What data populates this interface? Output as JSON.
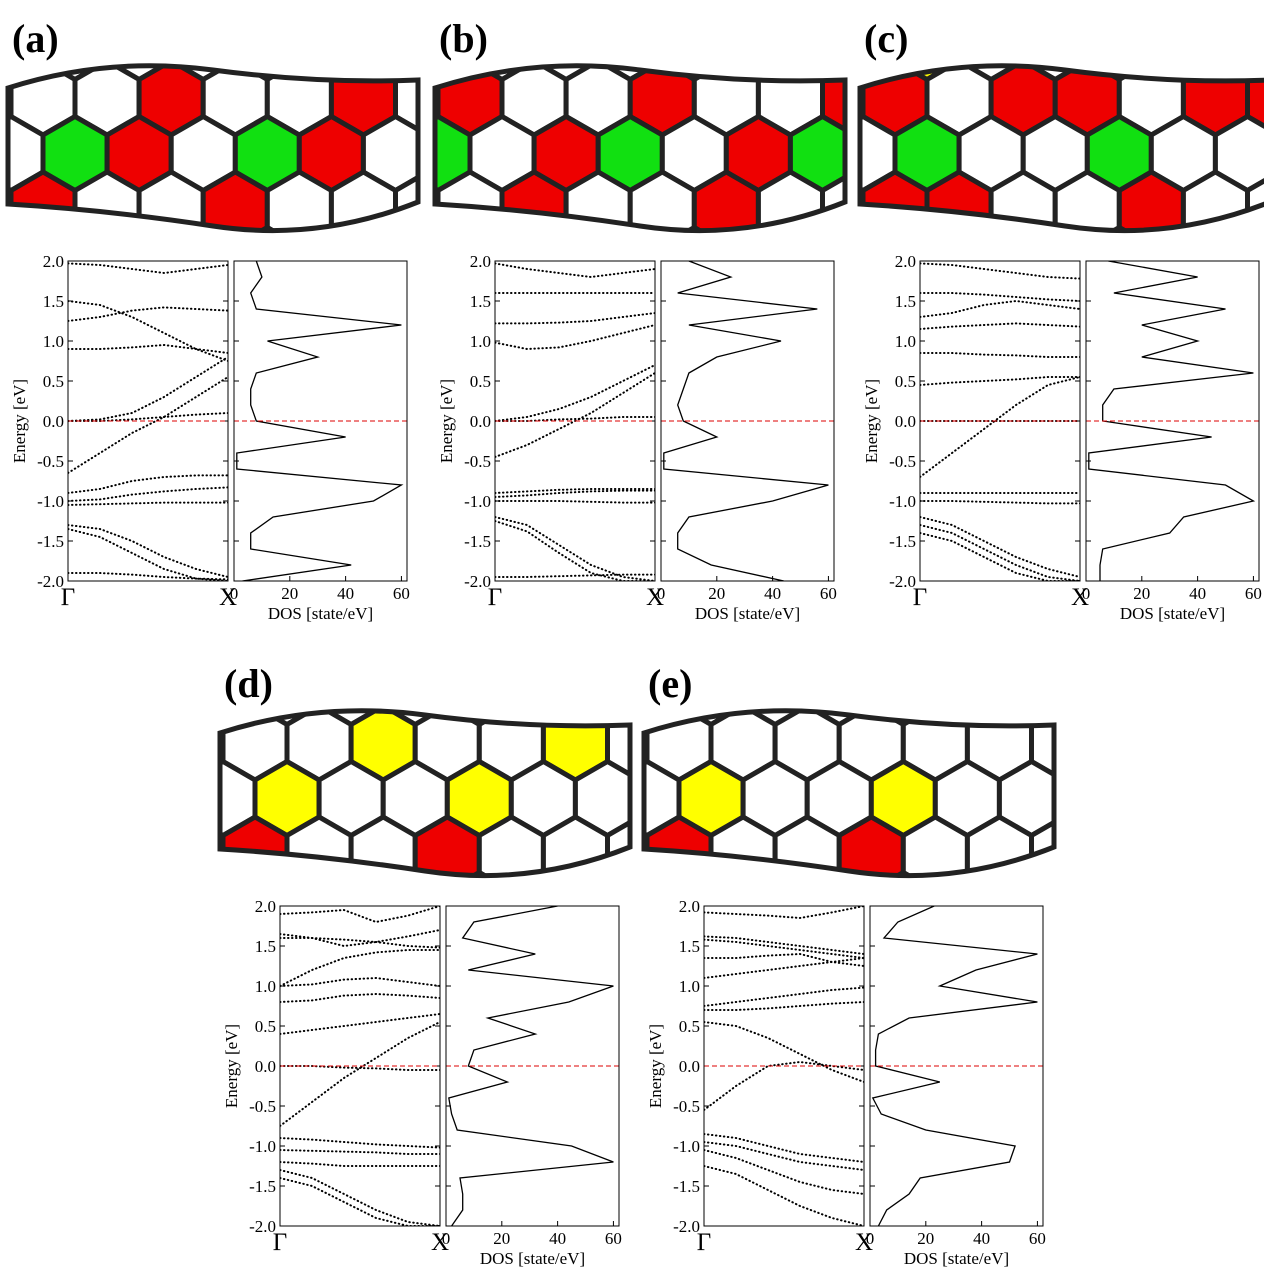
{
  "chart_data": [
    {
      "type": "band-dos",
      "label": "(a)",
      "ylabel": "Energy [eV]",
      "ylim": [
        -2,
        2
      ],
      "yticks": [
        {
          "value": -2,
          "label": "-2.0"
        },
        -1.5,
        {
          "value": -1,
          "label": "-1.0"
        },
        -0.5,
        {
          "value": 0,
          "label": "0.0"
        },
        0.5,
        {
          "value": 1,
          "label": "1.0"
        },
        1.5,
        {
          "value": 2,
          "label": "2.0"
        }
      ],
      "k_labels": [
        "Γ",
        "X"
      ],
      "xlim": [
        0,
        1
      ],
      "k": [
        0,
        0.2,
        0.4,
        0.6,
        0.8,
        1
      ],
      "bands": [
        [
          1.97,
          1.95,
          1.9,
          1.85,
          1.9,
          1.95
        ],
        [
          1.5,
          1.45,
          1.3,
          1.1,
          0.9,
          0.75
        ],
        [
          1.25,
          1.3,
          1.38,
          1.42,
          1.4,
          1.38
        ],
        [
          0.9,
          0.9,
          0.92,
          0.95,
          0.9,
          0.85
        ],
        [
          0.0,
          0.0,
          0.02,
          0.05,
          0.08,
          0.1
        ],
        [
          0.0,
          0.02,
          0.1,
          0.3,
          0.55,
          0.8
        ],
        [
          -0.65,
          -0.4,
          -0.15,
          0.05,
          0.3,
          0.55
        ],
        [
          -0.9,
          -0.85,
          -0.75,
          -0.7,
          -0.68,
          -0.68
        ],
        [
          -1.0,
          -0.98,
          -0.92,
          -0.88,
          -0.85,
          -0.83
        ],
        [
          -1.05,
          -1.04,
          -1.03,
          -1.02,
          -1.02,
          -1.02
        ],
        [
          -1.3,
          -1.35,
          -1.5,
          -1.7,
          -1.85,
          -1.95
        ],
        [
          -1.35,
          -1.45,
          -1.65,
          -1.85,
          -1.97,
          -2.0
        ],
        [
          -1.9,
          -1.9,
          -1.92,
          -1.95,
          -1.97,
          -1.98
        ]
      ],
      "fermi_level": 0,
      "dos_label": "DOS [state/eV]",
      "dos_xlim": [
        0,
        62
      ],
      "dos_xticks": [
        0,
        20,
        40,
        60
      ],
      "dos_energy": [
        -2,
        -1.8,
        -1.6,
        -1.4,
        -1.2,
        -1,
        -0.8,
        -0.6,
        -0.4,
        -0.2,
        0,
        0.2,
        0.4,
        0.6,
        0.8,
        1,
        1.2,
        1.4,
        1.6,
        1.8,
        2
      ],
      "dos": [
        3,
        42,
        6,
        6,
        14,
        50,
        60,
        1,
        1,
        40,
        8,
        6,
        6,
        8,
        30,
        12,
        60,
        8,
        6,
        10,
        8
      ]
    },
    {
      "type": "band-dos",
      "label": "(b)",
      "ylabel": "Energy [eV]",
      "ylim": [
        -2,
        2
      ],
      "yticks": [
        {
          "value": -2,
          "label": "-2.0"
        },
        -1.5,
        {
          "value": -1,
          "label": "-1.0"
        },
        -0.5,
        {
          "value": 0,
          "label": "0.0"
        },
        0.5,
        {
          "value": 1,
          "label": "1.0"
        },
        1.5,
        {
          "value": 2,
          "label": "2.0"
        }
      ],
      "k_labels": [
        "Γ",
        "X"
      ],
      "xlim": [
        0,
        1
      ],
      "k": [
        0,
        0.2,
        0.4,
        0.6,
        0.8,
        1
      ],
      "bands": [
        [
          1.97,
          1.9,
          1.85,
          1.8,
          1.85,
          1.9
        ],
        [
          1.6,
          1.6,
          1.6,
          1.6,
          1.6,
          1.6
        ],
        [
          1.22,
          1.22,
          1.23,
          1.25,
          1.3,
          1.35
        ],
        [
          0.98,
          0.9,
          0.92,
          1.0,
          1.1,
          1.2
        ],
        [
          0.0,
          0.05,
          0.15,
          0.3,
          0.5,
          0.7
        ],
        [
          -0.45,
          -0.3,
          -0.1,
          0.1,
          0.35,
          0.6
        ],
        [
          0.0,
          0.0,
          0.02,
          0.03,
          0.05,
          0.05
        ],
        [
          -0.9,
          -0.88,
          -0.86,
          -0.85,
          -0.85,
          -0.85
        ],
        [
          -0.95,
          -0.93,
          -0.9,
          -0.88,
          -0.87,
          -0.87
        ],
        [
          -1.0,
          -1.0,
          -1.0,
          -1.01,
          -1.02,
          -1.02
        ],
        [
          -1.2,
          -1.3,
          -1.55,
          -1.8,
          -1.95,
          -2.0
        ],
        [
          -1.25,
          -1.38,
          -1.65,
          -1.9,
          -2.0,
          -2.0
        ],
        [
          -1.95,
          -1.95,
          -1.94,
          -1.93,
          -1.92,
          -1.92
        ]
      ],
      "fermi_level": 0,
      "dos_label": "DOS [state/eV]",
      "dos_xlim": [
        0,
        62
      ],
      "dos_xticks": [
        0,
        20,
        40,
        60
      ],
      "dos_energy": [
        -2,
        -1.8,
        -1.6,
        -1.4,
        -1.2,
        -1,
        -0.8,
        -0.6,
        -0.4,
        -0.2,
        0,
        0.2,
        0.4,
        0.6,
        0.8,
        1,
        1.2,
        1.4,
        1.6,
        1.8,
        2
      ],
      "dos": [
        44,
        18,
        6,
        6,
        10,
        40,
        60,
        1,
        1,
        20,
        8,
        6,
        8,
        10,
        20,
        43,
        10,
        56,
        6,
        25,
        10
      ]
    },
    {
      "type": "band-dos",
      "label": "(c)",
      "ylabel": "Energy [eV]",
      "ylim": [
        -2,
        2
      ],
      "yticks": [
        {
          "value": -2,
          "label": "-2.0"
        },
        -1.5,
        {
          "value": -1,
          "label": "-1.0"
        },
        -0.5,
        {
          "value": 0,
          "label": "0.0"
        },
        0.5,
        {
          "value": 1,
          "label": "1.0"
        },
        1.5,
        {
          "value": 2,
          "label": "2.0"
        }
      ],
      "k_labels": [
        "Γ",
        "X"
      ],
      "xlim": [
        0,
        1
      ],
      "k": [
        0,
        0.2,
        0.4,
        0.6,
        0.8,
        1
      ],
      "bands": [
        [
          1.97,
          1.95,
          1.9,
          1.85,
          1.8,
          1.78
        ],
        [
          1.6,
          1.6,
          1.58,
          1.55,
          1.52,
          1.5
        ],
        [
          1.3,
          1.35,
          1.45,
          1.5,
          1.45,
          1.4
        ],
        [
          1.15,
          1.18,
          1.2,
          1.22,
          1.2,
          1.18
        ],
        [
          0.85,
          0.85,
          0.83,
          0.82,
          0.8,
          0.8
        ],
        [
          0.45,
          0.48,
          0.5,
          0.52,
          0.55,
          0.55
        ],
        [
          -0.7,
          -0.4,
          -0.1,
          0.2,
          0.45,
          0.55
        ],
        [
          0.0,
          0.0,
          0.0,
          0.0,
          0.0,
          0.0
        ],
        [
          -0.9,
          -0.9,
          -0.9,
          -0.9,
          -0.9,
          -0.9
        ],
        [
          -1.0,
          -1.0,
          -1.01,
          -1.02,
          -1.03,
          -1.03
        ],
        [
          -1.2,
          -1.3,
          -1.5,
          -1.7,
          -1.85,
          -1.95
        ],
        [
          -1.3,
          -1.4,
          -1.6,
          -1.8,
          -1.95,
          -2.0
        ],
        [
          -1.4,
          -1.5,
          -1.7,
          -1.9,
          -2.0,
          -2.0
        ]
      ],
      "fermi_level": 0,
      "dos_label": "DOS [state/eV]",
      "dos_xlim": [
        0,
        62
      ],
      "dos_xticks": [
        0,
        20,
        40,
        60
      ],
      "dos_energy": [
        -2,
        -1.8,
        -1.6,
        -1.4,
        -1.2,
        -1,
        -0.8,
        -0.6,
        -0.4,
        -0.2,
        0,
        0.2,
        0.4,
        0.6,
        0.8,
        1,
        1.2,
        1.4,
        1.6,
        1.8,
        2
      ],
      "dos": [
        5,
        5,
        6,
        30,
        35,
        60,
        50,
        1,
        1,
        45,
        6,
        6,
        10,
        60,
        20,
        40,
        20,
        50,
        10,
        40,
        8
      ]
    },
    {
      "type": "band-dos",
      "label": "(d)",
      "ylabel": "Energy [eV]",
      "ylim": [
        -2,
        2
      ],
      "yticks": [
        {
          "value": -2,
          "label": "-2.0"
        },
        -1.5,
        {
          "value": -1,
          "label": "-1.0"
        },
        -0.5,
        {
          "value": 0,
          "label": "0.0"
        },
        0.5,
        {
          "value": 1,
          "label": "1.0"
        },
        1.5,
        {
          "value": 2,
          "label": "2.0"
        }
      ],
      "k_labels": [
        "Γ",
        "X"
      ],
      "xlim": [
        0,
        1
      ],
      "k": [
        0,
        0.2,
        0.4,
        0.6,
        0.8,
        1
      ],
      "bands": [
        [
          1.9,
          1.92,
          1.95,
          1.8,
          1.88,
          2.0
        ],
        [
          1.65,
          1.6,
          1.5,
          1.55,
          1.62,
          1.7
        ],
        [
          1.6,
          1.6,
          1.58,
          1.55,
          1.5,
          1.48
        ],
        [
          1.0,
          1.2,
          1.35,
          1.42,
          1.45,
          1.45
        ],
        [
          1.0,
          1.02,
          1.08,
          1.1,
          1.05,
          1.0
        ],
        [
          0.8,
          0.82,
          0.88,
          0.9,
          0.88,
          0.85
        ],
        [
          0.4,
          0.45,
          0.5,
          0.55,
          0.6,
          0.65
        ],
        [
          -0.75,
          -0.45,
          -0.15,
          0.1,
          0.35,
          0.55
        ],
        [
          0.0,
          0.0,
          -0.02,
          -0.03,
          -0.05,
          -0.05
        ],
        [
          -0.9,
          -0.92,
          -0.95,
          -0.98,
          -1.0,
          -1.02
        ],
        [
          -1.05,
          -1.06,
          -1.07,
          -1.08,
          -1.1,
          -1.1
        ],
        [
          -1.2,
          -1.22,
          -1.25,
          -1.25,
          -1.25,
          -1.25
        ],
        [
          -1.3,
          -1.4,
          -1.6,
          -1.8,
          -1.95,
          -2.0
        ],
        [
          -1.4,
          -1.5,
          -1.7,
          -1.9,
          -2.0,
          -2.0
        ]
      ],
      "fermi_level": 0,
      "dos_label": "DOS [state/eV]",
      "dos_xlim": [
        0,
        62
      ],
      "dos_xticks": [
        0,
        20,
        40,
        60
      ],
      "dos_energy": [
        -2,
        -1.8,
        -1.6,
        -1.4,
        -1.2,
        -1,
        -0.8,
        -0.6,
        -0.4,
        -0.2,
        0,
        0.2,
        0.4,
        0.6,
        0.8,
        1,
        1.2,
        1.4,
        1.6,
        1.8,
        2
      ],
      "dos": [
        2,
        6,
        6,
        5,
        60,
        45,
        4,
        2,
        1,
        22,
        8,
        10,
        32,
        15,
        44,
        60,
        8,
        32,
        6,
        10,
        40
      ]
    },
    {
      "type": "band-dos",
      "label": "(e)",
      "ylabel": "Energy [eV]",
      "ylim": [
        -2,
        2
      ],
      "yticks": [
        {
          "value": -2,
          "label": "-2.0"
        },
        -1.5,
        {
          "value": -1,
          "label": "-1.0"
        },
        -0.5,
        {
          "value": 0,
          "label": "0.0"
        },
        0.5,
        {
          "value": 1,
          "label": "1.0"
        },
        1.5,
        {
          "value": 2,
          "label": "2.0"
        }
      ],
      "k_labels": [
        "Γ",
        "X"
      ],
      "xlim": [
        0,
        1
      ],
      "k": [
        0,
        0.2,
        0.4,
        0.6,
        0.8,
        1
      ],
      "bands": [
        [
          1.92,
          1.9,
          1.88,
          1.85,
          1.92,
          2.0
        ],
        [
          1.62,
          1.6,
          1.55,
          1.5,
          1.45,
          1.4
        ],
        [
          1.58,
          1.55,
          1.5,
          1.45,
          1.4,
          1.35
        ],
        [
          1.35,
          1.35,
          1.38,
          1.4,
          1.3,
          1.25
        ],
        [
          1.1,
          1.15,
          1.2,
          1.25,
          1.3,
          1.35
        ],
        [
          0.75,
          0.8,
          0.85,
          0.9,
          0.95,
          0.98
        ],
        [
          0.7,
          0.7,
          0.72,
          0.75,
          0.78,
          0.8
        ],
        [
          0.55,
          0.5,
          0.35,
          0.15,
          -0.05,
          -0.2
        ],
        [
          -0.55,
          -0.25,
          0.0,
          0.05,
          0.0,
          -0.05
        ],
        [
          -0.85,
          -0.9,
          -1.0,
          -1.1,
          -1.15,
          -1.2
        ],
        [
          -0.95,
          -1.0,
          -1.1,
          -1.2,
          -1.25,
          -1.3
        ],
        [
          -1.05,
          -1.15,
          -1.3,
          -1.45,
          -1.55,
          -1.6
        ],
        [
          -1.25,
          -1.35,
          -1.55,
          -1.75,
          -1.9,
          -2.0
        ]
      ],
      "fermi_level": 0,
      "dos_label": "DOS [state/eV]",
      "dos_xlim": [
        0,
        62
      ],
      "dos_xticks": [
        0,
        20,
        40,
        60
      ],
      "dos_energy": [
        -2,
        -1.8,
        -1.6,
        -1.4,
        -1.2,
        -1,
        -0.8,
        -0.6,
        -0.4,
        -0.2,
        0,
        0.2,
        0.4,
        0.6,
        0.8,
        1,
        1.2,
        1.4,
        1.6,
        1.8,
        2
      ],
      "dos": [
        3,
        6,
        14,
        18,
        50,
        52,
        20,
        4,
        1,
        25,
        2,
        2,
        3,
        14,
        60,
        25,
        38,
        60,
        5,
        10,
        23
      ]
    }
  ]
}
